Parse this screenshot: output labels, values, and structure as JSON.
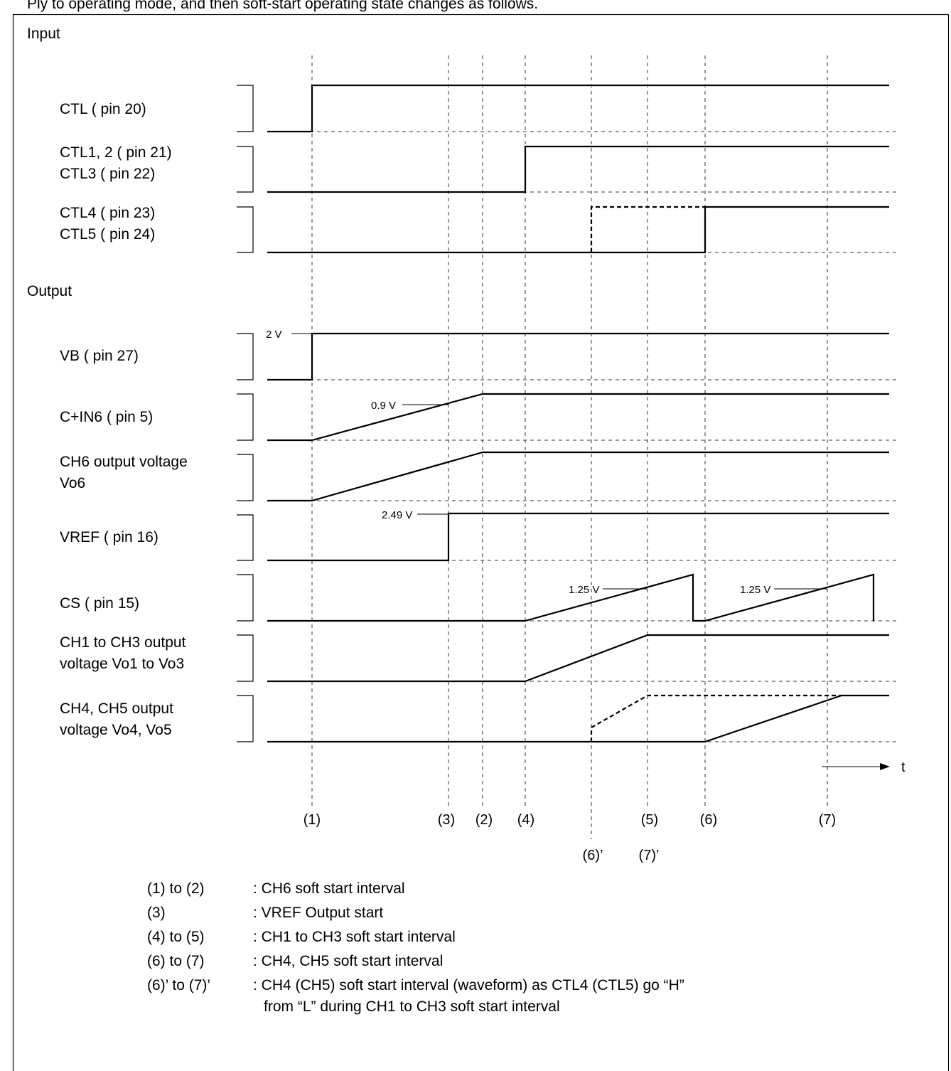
{
  "page_header": "Ply to operating mode, and then soft-start operating state changes as follows.",
  "sections": {
    "input": "Input",
    "output": "Output"
  },
  "signals": {
    "ctl": [
      "CTL ( pin 20)"
    ],
    "ctl123": [
      "CTL1, 2 ( pin 21)",
      "CTL3 ( pin 22)"
    ],
    "ctl45": [
      "CTL4 ( pin 23)",
      "CTL5 ( pin 24)"
    ],
    "vb": [
      "VB ( pin 27)"
    ],
    "cin6": [
      "C+IN6 ( pin 5)"
    ],
    "ch6": [
      "CH6 output voltage",
      "Vo6"
    ],
    "vref": [
      "VREF ( pin 16)"
    ],
    "cs": [
      "CS ( pin 15)"
    ],
    "ch13": [
      "CH1 to CH3 output",
      "voltage Vo1 to Vo3"
    ],
    "ch45": [
      "CH4, CH5 output",
      "voltage Vo4, Vo5"
    ]
  },
  "annotations": {
    "vb": "2 V",
    "cin6": "0.9 V",
    "vref": "2.49 V",
    "cs_a": "1.25 V",
    "cs_b": "1.25 V"
  },
  "time_axis": "t",
  "markers": {
    "m1": "(1)",
    "m3": "(3)",
    "m2": "(2)",
    "m4": "(4)",
    "m5": "(5)",
    "m6": "(6)",
    "m7": "(7)",
    "m6p": "(6)’",
    "m7p": "(7)’"
  },
  "legend": [
    {
      "key": "(1) to (2)",
      "desc": ": CH6 soft start interval"
    },
    {
      "key": "(3)",
      "desc": ": VREF Output start"
    },
    {
      "key": "(4) to (5)",
      "desc": ": CH1 to CH3 soft start interval"
    },
    {
      "key": "(6) to (7)",
      "desc": ": CH4, CH5 soft start interval"
    },
    {
      "key": "(6)’ to (7)’",
      "desc": ": CH4 (CH5) soft start interval (waveform) as CTL4 (CTL5) go “H”",
      "desc2": "from “L” during CH1 to CH3 soft start interval"
    }
  ]
}
